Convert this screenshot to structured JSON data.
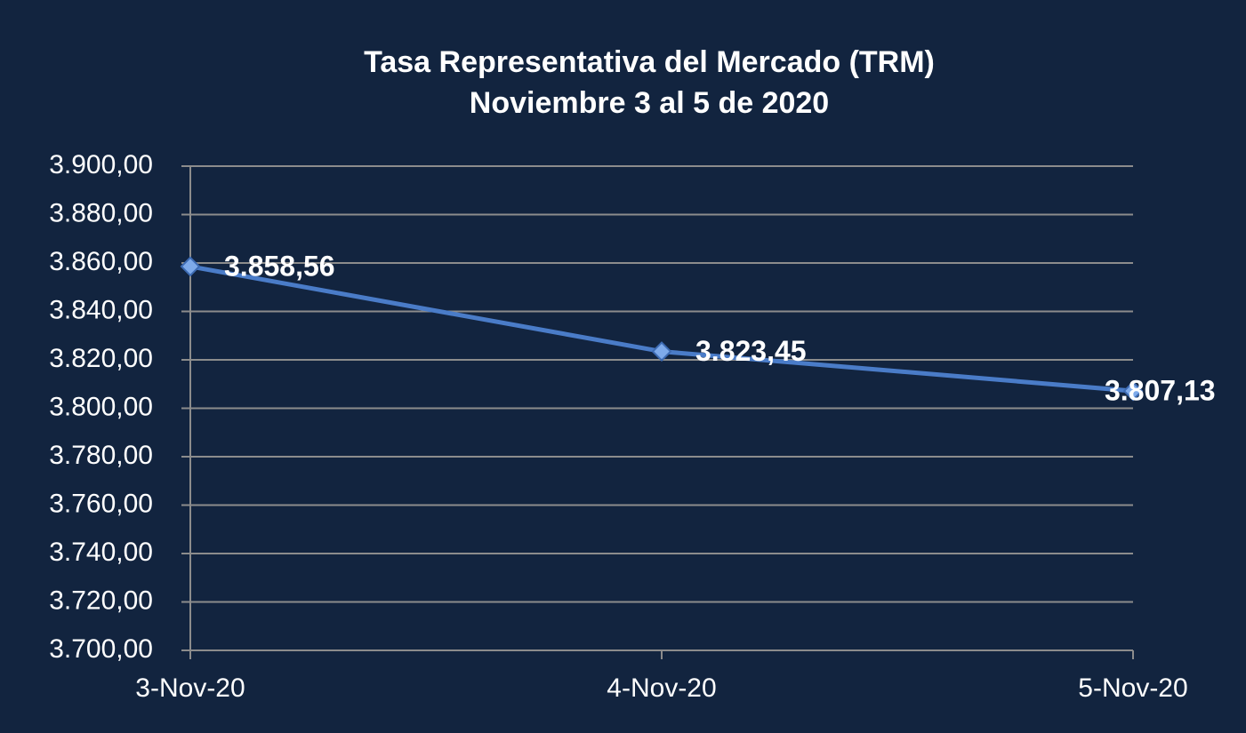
{
  "chart_data": {
    "type": "line",
    "title": "Tasa Representativa del Mercado (TRM)",
    "subtitle": "Noviembre  3 al 5 de  2020",
    "categories": [
      "3-Nov-20",
      "4-Nov-20",
      "5-Nov-20"
    ],
    "series": [
      {
        "color": "#4a7cc8",
        "values": [
          3858.56,
          3823.45,
          3807.13
        ],
        "value_labels": [
          "3.858,56",
          "3.823,45",
          "3.807,13"
        ]
      }
    ],
    "ylim": [
      3700,
      3900
    ],
    "yticks": [
      {
        "value": 3700,
        "label": "3.700,00"
      },
      {
        "value": 3720,
        "label": "3.720,00"
      },
      {
        "value": 3740,
        "label": "3.740,00"
      },
      {
        "value": 3760,
        "label": "3.760,00"
      },
      {
        "value": 3780,
        "label": "3.780,00"
      },
      {
        "value": 3800,
        "label": "3.800,00"
      },
      {
        "value": 3820,
        "label": "3.820,00"
      },
      {
        "value": 3840,
        "label": "3.840,00"
      },
      {
        "value": 3860,
        "label": "3.860,00"
      },
      {
        "value": 3880,
        "label": "3.880,00"
      },
      {
        "value": 3900,
        "label": "3.900,00"
      }
    ],
    "grid": true
  }
}
